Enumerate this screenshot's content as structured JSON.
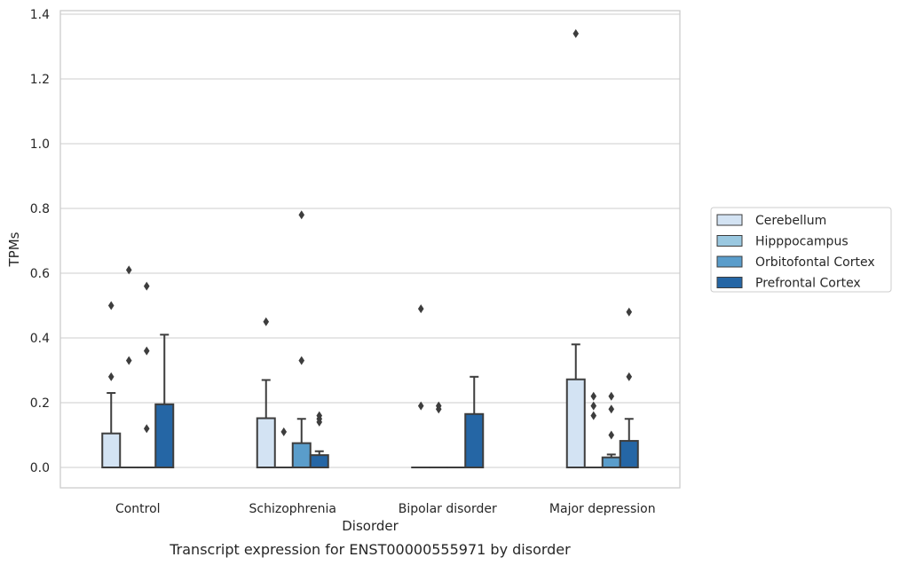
{
  "chart_data": {
    "type": "box",
    "caption": "Transcript expression for ENST00000555971 by disorder",
    "xlabel": "Disorder",
    "ylabel": "TPMs",
    "ylim": [
      -0.065,
      1.41
    ],
    "yticks": [
      0.0,
      0.2,
      0.4,
      0.6,
      0.8,
      1.0,
      1.2,
      1.4
    ],
    "ytick_labels": [
      "0.0",
      "0.2",
      "0.4",
      "0.6",
      "0.8",
      "1.0",
      "1.2",
      "1.4"
    ],
    "grid": "horizontal",
    "legend_position": "right",
    "categories": [
      "Control",
      "Schizophrenia",
      "Bipolar disorder",
      "Major depression"
    ],
    "series": [
      {
        "name": "Cerebellum",
        "color": "#d3e3f3",
        "boxes": [
          {
            "q1": 0,
            "median": 0,
            "q3": 0.105,
            "whisker_low": 0,
            "whisker_high": 0.23,
            "outliers": [
              0.5,
              0.28
            ]
          },
          {
            "q1": 0,
            "median": 0,
            "q3": 0.152,
            "whisker_low": 0,
            "whisker_high": 0.27,
            "outliers": [
              0.45
            ]
          },
          {
            "q1": 0,
            "median": 0,
            "q3": 0,
            "whisker_low": 0,
            "whisker_high": 0,
            "outliers": [
              0.49,
              0.19
            ]
          },
          {
            "q1": 0,
            "median": 0,
            "q3": 0.272,
            "whisker_low": 0,
            "whisker_high": 0.38,
            "outliers": [
              1.34
            ]
          }
        ]
      },
      {
        "name": "Hipppocampus",
        "color": "#9ac8e0",
        "boxes": [
          {
            "q1": 0,
            "median": 0,
            "q3": 0,
            "whisker_low": 0,
            "whisker_high": 0,
            "outliers": [
              0.61,
              0.33
            ]
          },
          {
            "q1": 0,
            "median": 0,
            "q3": 0,
            "whisker_low": 0,
            "whisker_high": 0,
            "outliers": [
              0.11
            ]
          },
          {
            "q1": 0,
            "median": 0,
            "q3": 0,
            "whisker_low": 0,
            "whisker_high": 0,
            "outliers": [
              0.19,
              0.18
            ]
          },
          {
            "q1": 0,
            "median": 0,
            "q3": 0,
            "whisker_low": 0,
            "whisker_high": 0,
            "outliers": [
              0.22,
              0.19,
              0.16
            ]
          }
        ]
      },
      {
        "name": "Orbitofontal Cortex",
        "color": "#5a9dcb",
        "boxes": [
          {
            "q1": 0,
            "median": 0,
            "q3": 0,
            "whisker_low": 0,
            "whisker_high": 0,
            "outliers": [
              0.56,
              0.36,
              0.12
            ]
          },
          {
            "q1": 0,
            "median": 0,
            "q3": 0.075,
            "whisker_low": 0,
            "whisker_high": 0.15,
            "outliers": [
              0.78,
              0.33
            ]
          },
          {
            "q1": 0,
            "median": 0,
            "q3": 0,
            "whisker_low": 0,
            "whisker_high": 0,
            "outliers": []
          },
          {
            "q1": 0,
            "median": 0,
            "q3": 0.031,
            "whisker_low": 0,
            "whisker_high": 0.04,
            "outliers": [
              0.22,
              0.18,
              0.1
            ]
          }
        ]
      },
      {
        "name": "Prefrontal Cortex",
        "color": "#2566a5",
        "boxes": [
          {
            "q1": 0,
            "median": 0,
            "q3": 0.195,
            "whisker_low": 0,
            "whisker_high": 0.41,
            "outliers": []
          },
          {
            "q1": 0,
            "median": 0,
            "q3": 0.038,
            "whisker_low": 0,
            "whisker_high": 0.05,
            "outliers": [
              0.16,
              0.15,
              0.14
            ]
          },
          {
            "q1": 0,
            "median": 0,
            "q3": 0.165,
            "whisker_low": 0,
            "whisker_high": 0.28,
            "outliers": []
          },
          {
            "q1": 0,
            "median": 0,
            "q3": 0.082,
            "whisker_low": 0,
            "whisker_high": 0.15,
            "outliers": [
              0.48,
              0.28
            ]
          }
        ]
      }
    ]
  }
}
